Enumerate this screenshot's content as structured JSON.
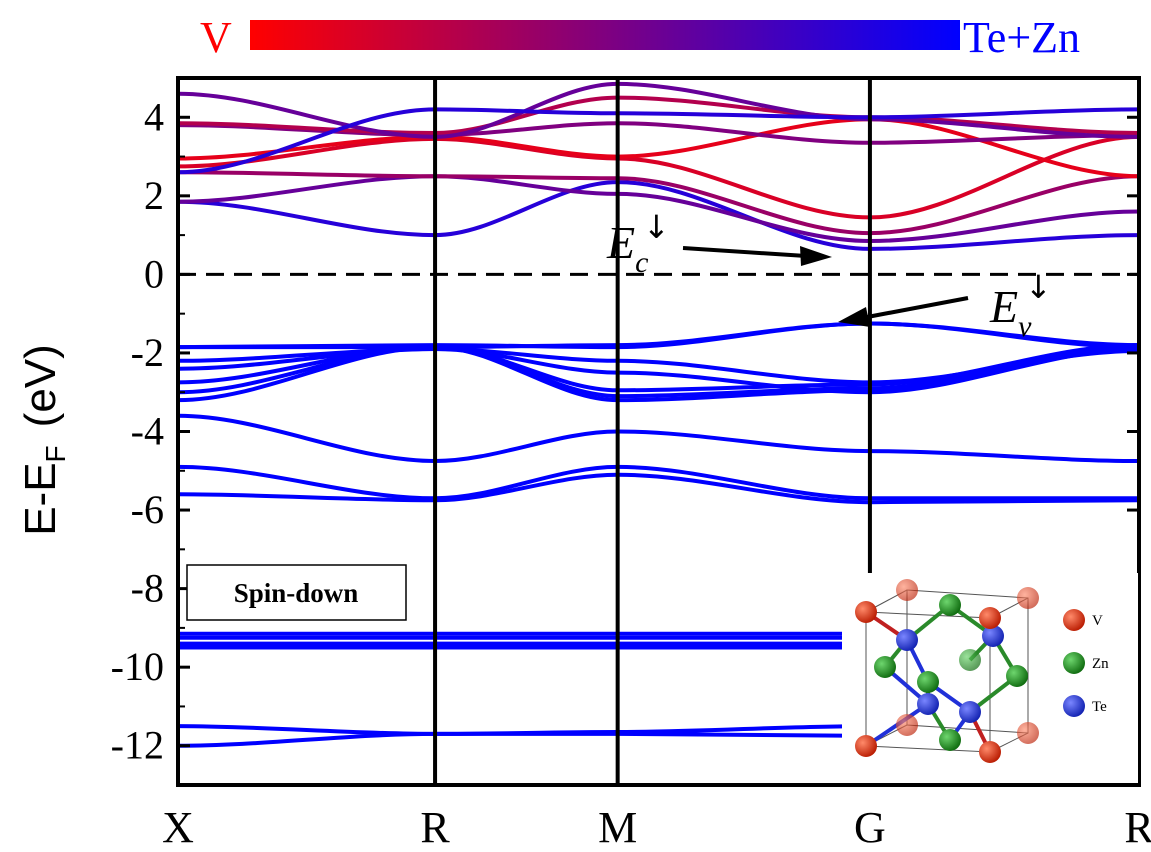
{
  "chart_data": {
    "type": "line",
    "title": "",
    "xlabel": "",
    "ylabel": {
      "main": "E-E",
      "sub": "F",
      "unit": "(eV)"
    },
    "ylim": [
      -13,
      5
    ],
    "xlim": [
      0,
      4
    ],
    "yticks": [
      {
        "value": 4,
        "label": "4"
      },
      {
        "value": 2,
        "label": "2"
      },
      {
        "value": 0,
        "label": "0"
      },
      {
        "value": -2,
        "label": "-2"
      },
      {
        "value": -4,
        "label": "-4"
      },
      {
        "value": -6,
        "label": "-6"
      },
      {
        "value": -8,
        "label": "-8"
      },
      {
        "value": -10,
        "label": "-10"
      },
      {
        "value": -12,
        "label": "-12"
      }
    ],
    "kpoints": [
      {
        "pos": 0,
        "label": "X"
      },
      {
        "pos": 1.07,
        "label": "R"
      },
      {
        "pos": 1.83,
        "label": "M"
      },
      {
        "pos": 2.88,
        "label": "G"
      },
      {
        "pos": 4,
        "label": "R"
      }
    ],
    "fermi_level": 0,
    "colorbar": {
      "left_label": "V",
      "right_label": "Te+Zn",
      "left_color": "#ff0000",
      "right_color": "#0000ff"
    },
    "panel_label": "Spin-down",
    "annotations": [
      {
        "main": "E",
        "sub": "c",
        "sup": "↓",
        "target": [
          2.88,
          0.6
        ]
      },
      {
        "main": "E",
        "sub": "v",
        "sup": "↓",
        "target": [
          2.88,
          -1.25
        ]
      }
    ],
    "inset_legend": [
      {
        "label": "V",
        "color": "#d42a0a"
      },
      {
        "label": "Zn",
        "color": "#1c8a1c"
      },
      {
        "label": "Te",
        "color": "#2030d8"
      }
    ],
    "series": [
      {
        "character": 1,
        "values": [
          -12.0,
          -11.7,
          -11.7,
          -11.75,
          -12.45
        ]
      },
      {
        "character": 1,
        "values": [
          -11.5,
          -11.7,
          -11.65,
          -11.5,
          -11.5
        ]
      },
      {
        "character": 1,
        "values": [
          -9.5,
          -9.5,
          -9.5,
          -9.5,
          -9.5
        ]
      },
      {
        "character": 1,
        "values": [
          -9.4,
          -9.4,
          -9.4,
          -9.4,
          -9.4
        ]
      },
      {
        "character": 1,
        "values": [
          -9.25,
          -9.25,
          -9.25,
          -9.25,
          -9.25
        ]
      },
      {
        "character": 1,
        "values": [
          -9.15,
          -9.15,
          -9.15,
          -9.15,
          -9.15
        ]
      },
      {
        "character": 1,
        "values": [
          -5.6,
          -5.75,
          -5.1,
          -5.8,
          -5.75
        ]
      },
      {
        "character": 1,
        "values": [
          -4.9,
          -5.7,
          -4.9,
          -5.7,
          -5.7
        ]
      },
      {
        "character": 1,
        "values": [
          -3.6,
          -4.75,
          -4.0,
          -4.5,
          -4.75
        ]
      },
      {
        "character": 1,
        "values": [
          -3.2,
          -1.85,
          -2.95,
          -2.8,
          -1.8
        ]
      },
      {
        "character": 1,
        "values": [
          -3.0,
          -1.85,
          -3.1,
          -2.9,
          -1.8
        ]
      },
      {
        "character": 1,
        "values": [
          -2.75,
          -1.85,
          -3.2,
          -2.95,
          -1.85
        ]
      },
      {
        "character": 1,
        "values": [
          -2.4,
          -1.9,
          -2.5,
          -3.0,
          -1.9
        ]
      },
      {
        "character": 1,
        "values": [
          -2.2,
          -1.9,
          -2.2,
          -2.75,
          -1.95
        ]
      },
      {
        "character": 1,
        "values": [
          -1.85,
          -1.8,
          -1.85,
          -1.25,
          -1.8
        ]
      },
      {
        "character": 1,
        "values": [
          -1.85,
          -1.85,
          -1.8,
          -1.25,
          -1.85
        ]
      },
      {
        "character": 0.85,
        "values": [
          1.85,
          1.0,
          2.35,
          0.65,
          1.0
        ]
      },
      {
        "character": 0.6,
        "values": [
          1.85,
          2.5,
          2.05,
          0.85,
          1.6
        ]
      },
      {
        "character": 0.4,
        "values": [
          2.6,
          2.5,
          2.45,
          1.05,
          2.5
        ]
      },
      {
        "character": 0.15,
        "values": [
          2.75,
          3.45,
          2.95,
          1.45,
          3.5
        ]
      },
      {
        "character": 0.1,
        "values": [
          2.95,
          3.5,
          3.0,
          3.95,
          2.5
        ]
      },
      {
        "character": 0.5,
        "values": [
          3.8,
          3.55,
          3.85,
          3.35,
          3.55
        ]
      },
      {
        "character": 0.3,
        "values": [
          3.85,
          3.6,
          4.5,
          4.0,
          3.6
        ]
      },
      {
        "character": 0.6,
        "values": [
          4.6,
          3.5,
          4.85,
          3.95,
          3.5
        ]
      },
      {
        "character": 0.85,
        "values": [
          2.6,
          4.2,
          4.1,
          4.0,
          4.2
        ]
      }
    ]
  }
}
